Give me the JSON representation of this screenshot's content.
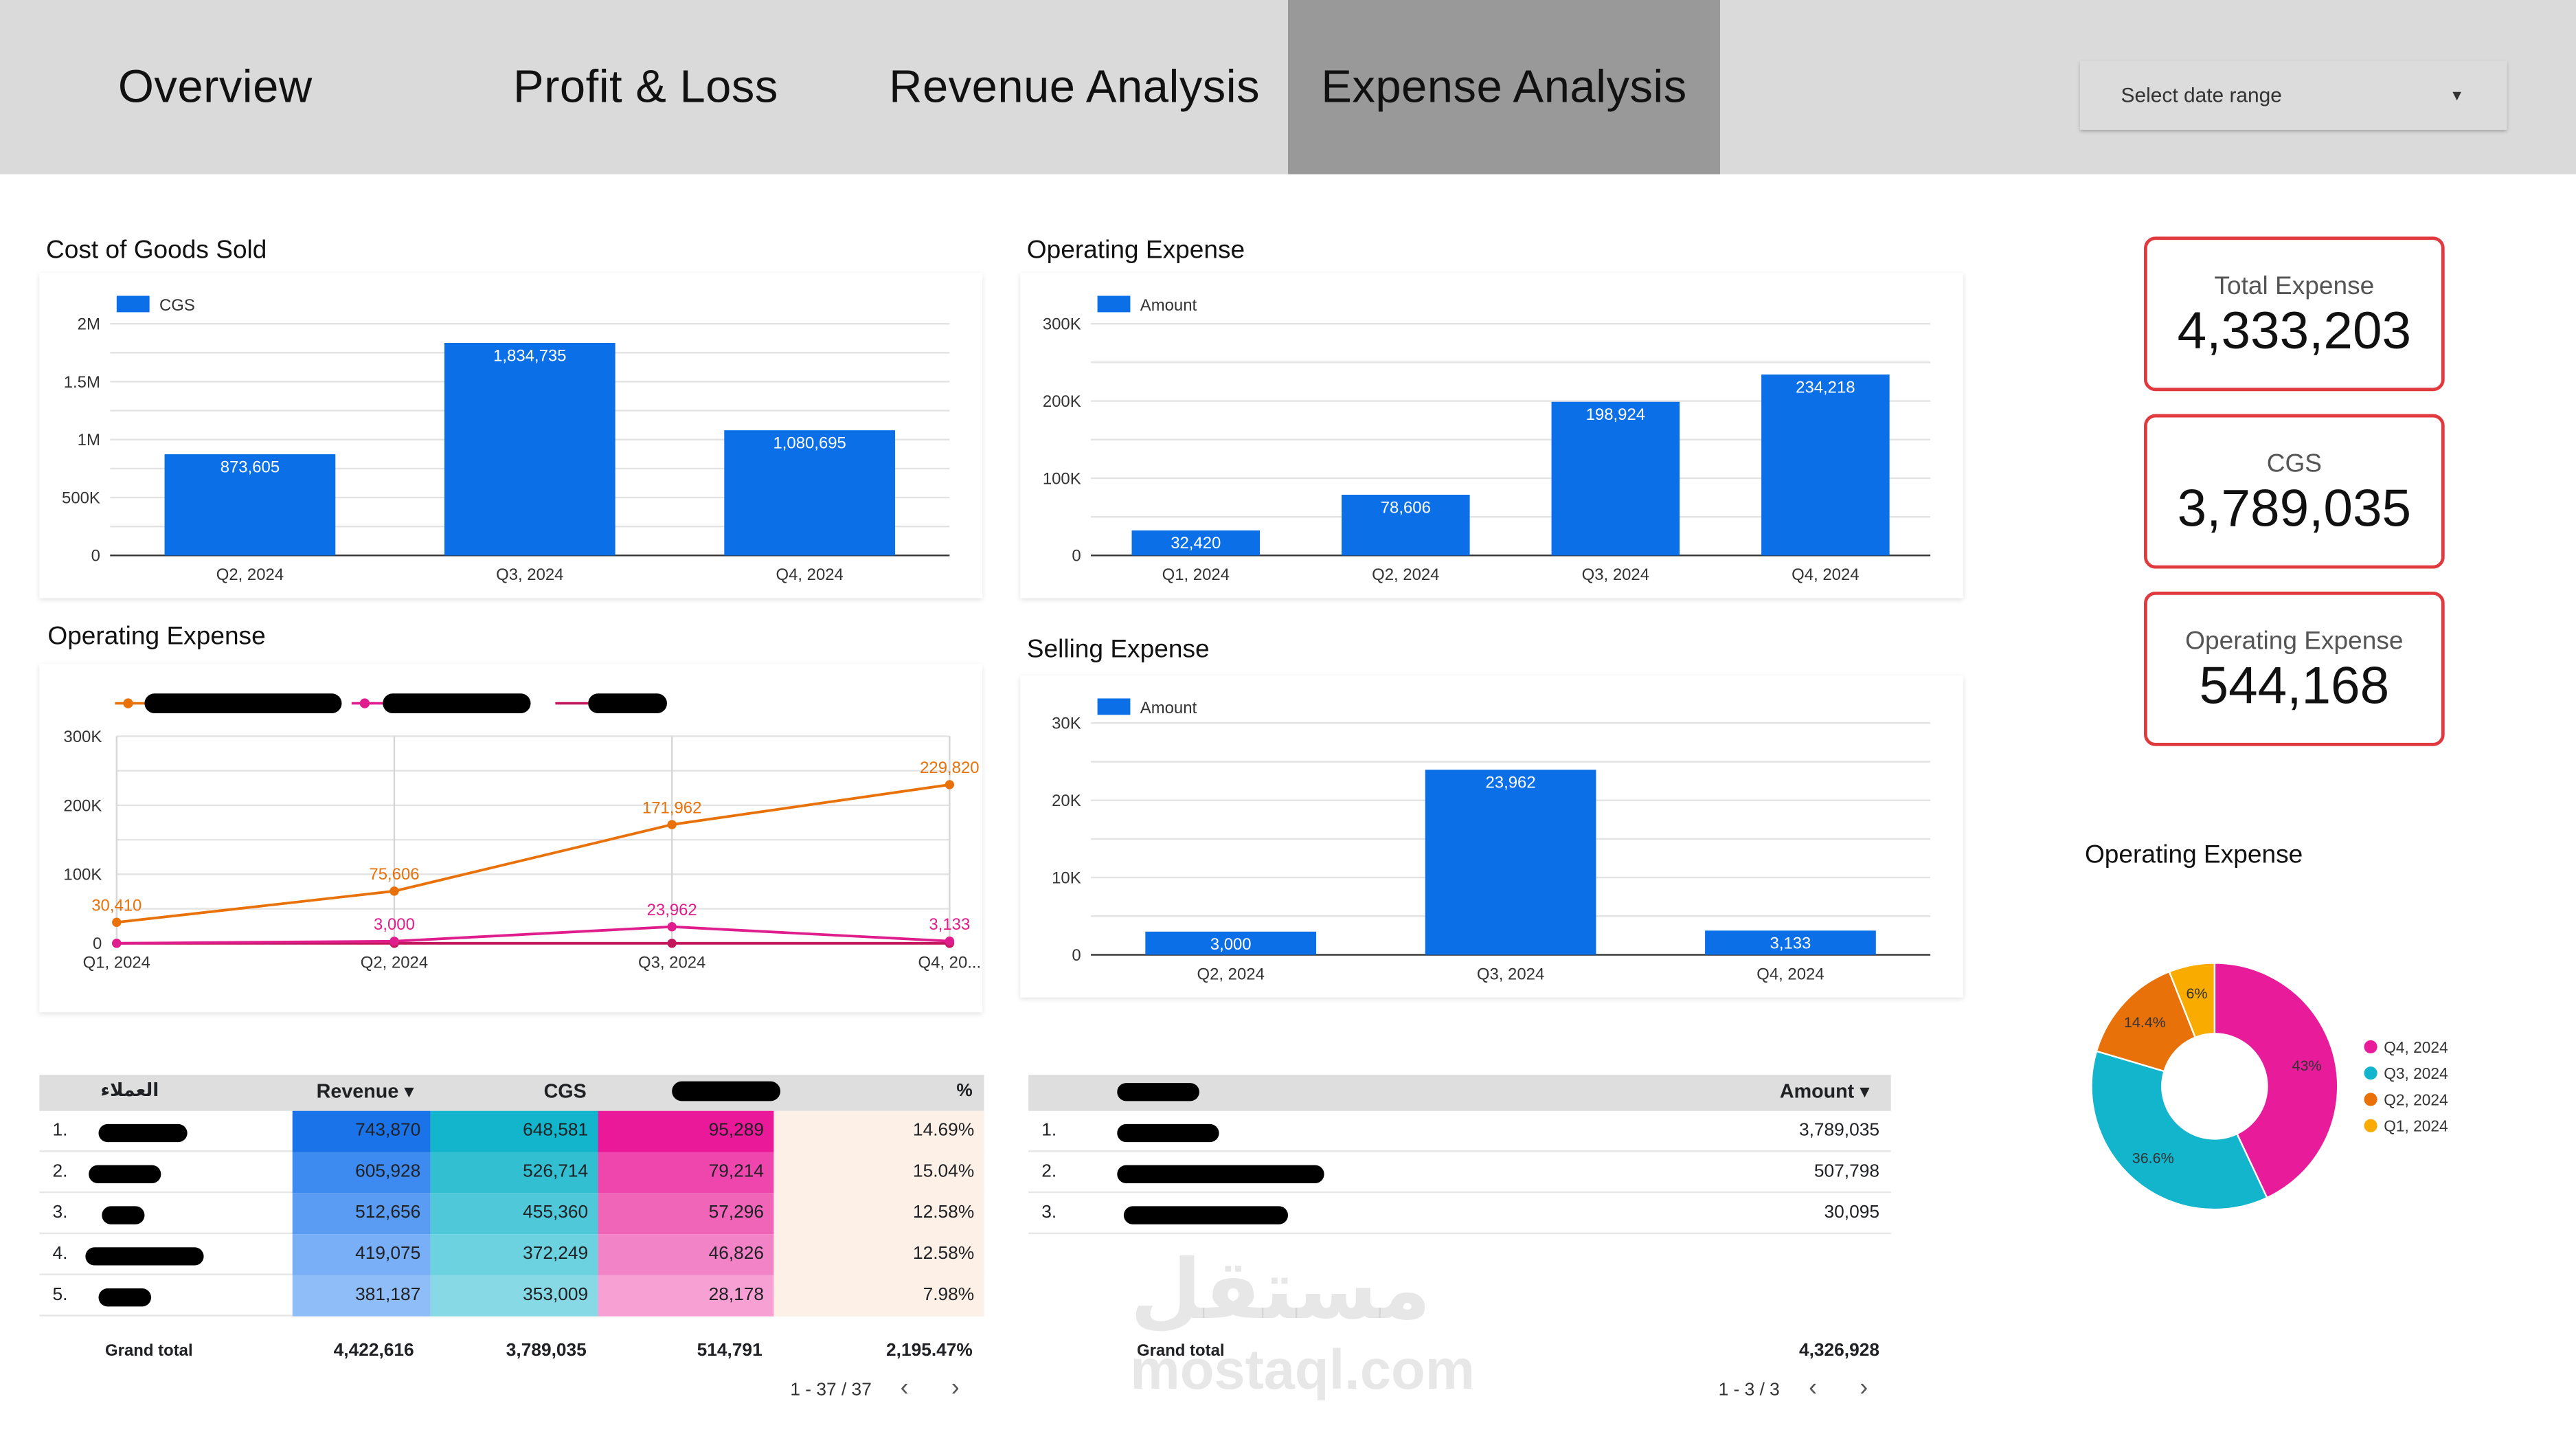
{
  "tabs": [
    {
      "label": "Overview",
      "active": false
    },
    {
      "label": "Profit & Loss",
      "active": false
    },
    {
      "label": "Revenue Analysis",
      "active": false
    },
    {
      "label": "Expense Analysis",
      "active": true
    }
  ],
  "date_selector": {
    "placeholder": "Select date range"
  },
  "titles": {
    "cgs_chart": "Cost of Goods Sold",
    "opex_bar": "Operating Expense",
    "opex_line": "Operating Expense",
    "selling": "Selling Expense",
    "pie": "Operating Expense"
  },
  "kpis": [
    {
      "label": "Total Expense",
      "value": "4,333,203"
    },
    {
      "label": "CGS",
      "value": "3,789,035"
    },
    {
      "label": "Operating Expense",
      "value": "544,168"
    }
  ],
  "chart_data": [
    {
      "id": "cgs",
      "type": "bar",
      "legend": "CGS",
      "categories": [
        "Q2, 2024",
        "Q3, 2024",
        "Q4, 2024"
      ],
      "values": [
        873605,
        1834735,
        1080695
      ],
      "labels": [
        "873,605",
        "1,834,735",
        "1,080,695"
      ],
      "yticks": [
        "0",
        "500K",
        "1M",
        "1.5M",
        "2M"
      ],
      "ylim": [
        0,
        2000000
      ],
      "color": "#0b6fe8"
    },
    {
      "id": "opex",
      "type": "bar",
      "legend": "Amount",
      "categories": [
        "Q1, 2024",
        "Q2, 2024",
        "Q3, 2024",
        "Q4, 2024"
      ],
      "values": [
        32420,
        78606,
        198924,
        234218
      ],
      "labels": [
        "32,420",
        "78,606",
        "198,924",
        "234,218"
      ],
      "yticks": [
        "0",
        "100K",
        "200K",
        "300K"
      ],
      "ylim": [
        0,
        300000
      ],
      "color": "#0b6fe8"
    },
    {
      "id": "selling",
      "type": "bar",
      "legend": "Amount",
      "categories": [
        "Q2, 2024",
        "Q3, 2024",
        "Q4, 2024"
      ],
      "values": [
        3000,
        23962,
        3133
      ],
      "labels": [
        "3,000",
        "23,962",
        "3,133"
      ],
      "yticks": [
        "0",
        "10K",
        "20K",
        "30K"
      ],
      "ylim": [
        0,
        30000
      ],
      "color": "#0b6fe8"
    },
    {
      "id": "opex_line",
      "type": "line",
      "categories": [
        "Q1, 2024",
        "Q2, 2024",
        "Q3, 2024",
        "Q4, 20..."
      ],
      "yticks": [
        "0",
        "100K",
        "200K",
        "300K"
      ],
      "ylim": [
        0,
        300000
      ],
      "series": [
        {
          "values": [
            30410,
            75606,
            171962,
            229820
          ],
          "labels": [
            "30,410",
            "75,606",
            "171,962",
            "229,820"
          ],
          "color": "#e8710a"
        },
        {
          "values": [
            0,
            3000,
            23962,
            3133
          ],
          "labels": [
            "",
            "3,000",
            "23,962",
            "3,133"
          ],
          "color": "#e01d8c"
        },
        {
          "values": [
            0,
            0,
            0,
            0
          ],
          "labels": [
            "",
            "",
            "",
            ""
          ],
          "color": "#c2185b"
        }
      ]
    },
    {
      "id": "pie",
      "type": "pie",
      "slices": [
        {
          "name": "Q4, 2024",
          "value": 43,
          "label": "43%",
          "color": "#e81c9b"
        },
        {
          "name": "Q3, 2024",
          "value": 36.6,
          "label": "36.6%",
          "color": "#12b5cb"
        },
        {
          "name": "Q2, 2024",
          "value": 14.4,
          "label": "14.4%",
          "color": "#e8710a"
        },
        {
          "name": "Q1, 2024",
          "value": 6,
          "label": "6%",
          "color": "#f9ab00"
        }
      ]
    }
  ],
  "table1": {
    "headers": [
      "العملاء",
      "Revenue ▾",
      "CGS",
      "",
      "%"
    ],
    "rows": [
      {
        "idx": "1.",
        "revenue": "743,870",
        "cgs": "648,581",
        "gp": "95,289",
        "pct": "14.69%"
      },
      {
        "idx": "2.",
        "revenue": "605,928",
        "cgs": "526,714",
        "gp": "79,214",
        "pct": "15.04%"
      },
      {
        "idx": "3.",
        "revenue": "512,656",
        "cgs": "455,360",
        "gp": "57,296",
        "pct": "12.58%"
      },
      {
        "idx": "4.",
        "revenue": "419,075",
        "cgs": "372,249",
        "gp": "46,826",
        "pct": "12.58%"
      },
      {
        "idx": "5.",
        "revenue": "381,187",
        "cgs": "353,009",
        "gp": "28,178",
        "pct": "7.98%"
      }
    ],
    "total": {
      "label": "Grand total",
      "revenue": "4,422,616",
      "cgs": "3,789,035",
      "gp": "514,791",
      "pct": "2,195.47%"
    },
    "pager": "1 - 37 / 37"
  },
  "table2": {
    "headers": [
      "",
      "Amount ▾"
    ],
    "rows": [
      {
        "idx": "1.",
        "amount": "3,789,035"
      },
      {
        "idx": "2.",
        "amount": "507,798"
      },
      {
        "idx": "3.",
        "amount": "30,095"
      }
    ],
    "total": {
      "label": "Grand total",
      "amount": "4,326,928"
    },
    "pager": "1 - 3 / 3"
  },
  "watermark": {
    "arabic": "مستقل",
    "latin": "mostaql.com"
  }
}
